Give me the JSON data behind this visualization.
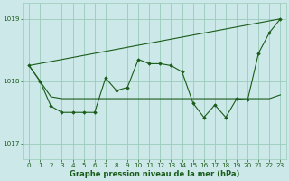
{
  "title": "Graphe pression niveau de la mer (hPa)",
  "bg_color": "#cce8e8",
  "grid_color": "#99ccbb",
  "line_color": "#1a5c1a",
  "ylim": [
    1016.75,
    1019.25
  ],
  "xlim": [
    -0.5,
    23.5
  ],
  "yticks": [
    1017,
    1018,
    1019
  ],
  "xticks": [
    0,
    1,
    2,
    3,
    4,
    5,
    6,
    7,
    8,
    9,
    10,
    11,
    12,
    13,
    14,
    15,
    16,
    17,
    18,
    19,
    20,
    21,
    22,
    23
  ],
  "series_main": [
    1018.25,
    1018.0,
    1017.6,
    1017.5,
    1017.5,
    1017.5,
    1017.5,
    1018.05,
    1017.85,
    1017.9,
    1018.35,
    1018.28,
    1018.28,
    1018.25,
    1018.15,
    1017.65,
    1017.42,
    1017.62,
    1017.42,
    1017.72,
    1017.7,
    1018.45,
    1018.78,
    1019.0
  ],
  "series_flat": [
    1018.25,
    1018.0,
    1017.75,
    1017.72,
    1017.72,
    1017.72,
    1017.72,
    1017.72,
    1017.72,
    1017.72,
    1017.72,
    1017.72,
    1017.72,
    1017.72,
    1017.72,
    1017.72,
    1017.72,
    1017.72,
    1017.72,
    1017.72,
    1017.72,
    1017.72,
    1017.72,
    1017.78
  ],
  "trend_x": [
    0,
    23
  ],
  "trend_y": [
    1018.25,
    1019.0
  ]
}
